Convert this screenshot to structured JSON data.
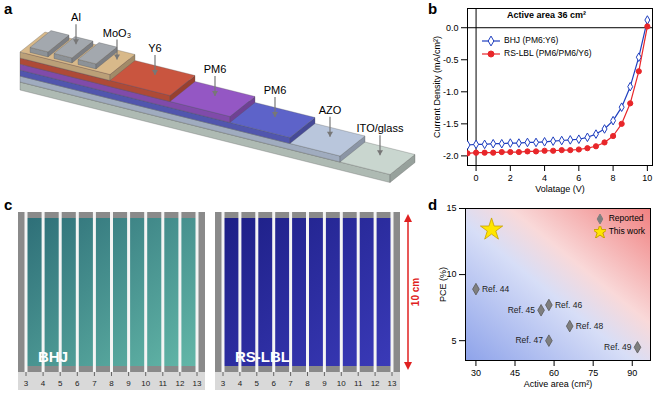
{
  "diagram": {
    "letter": "a",
    "layers": [
      "ITO/glass",
      "AZO",
      "PM6",
      "PM6",
      "Y6",
      "MoO₃",
      "Al"
    ]
  },
  "photos": {
    "letter": "c",
    "labels": [
      "BHJ",
      "RS-LBL"
    ],
    "ruler": [
      3,
      4,
      5,
      6,
      7,
      8,
      9,
      10,
      11,
      12,
      13
    ],
    "scale_bar": "10 cm"
  },
  "chart_data": [
    {
      "panel": "b",
      "type": "line",
      "annotation": "Active area 36 cm²",
      "x_label": "Volatage (V)",
      "y_label": "Current Density (mA/cm²)",
      "xlim": [
        -0.5,
        10.3
      ],
      "xticks": [
        0,
        2,
        4,
        6,
        8,
        10
      ],
      "ylim": [
        -2.15,
        0.3
      ],
      "yticks": [
        {
          "value": -2,
          "label": "-2.0"
        },
        {
          "value": -1.5,
          "label": "-1.5"
        },
        {
          "value": -1,
          "label": "-1.0"
        },
        {
          "value": -0.5,
          "label": "-0.5"
        },
        {
          "value": 0,
          "label": "0.0"
        }
      ],
      "legend": "top",
      "x": [
        -0.5,
        0,
        0.5,
        1,
        1.5,
        2,
        2.5,
        3,
        3.5,
        4,
        4.5,
        5,
        5.5,
        6,
        6.5,
        7,
        7.5,
        8,
        8.5,
        9,
        9.5,
        10
      ],
      "series": [
        {
          "name": "BHJ (PM6:Y6)",
          "color": "#1f3fbf",
          "marker": "diamond",
          "values": [
            -1.83,
            -1.82,
            -1.82,
            -1.81,
            -1.81,
            -1.8,
            -1.8,
            -1.79,
            -1.79,
            -1.78,
            -1.77,
            -1.76,
            -1.75,
            -1.74,
            -1.71,
            -1.66,
            -1.58,
            -1.45,
            -1.24,
            -0.92,
            -0.46,
            0.12
          ]
        },
        {
          "name": "RS-LBL (PM6/PM6/Y6)",
          "color": "#e8262a",
          "marker": "circle",
          "values": [
            -1.96,
            -1.95,
            -1.95,
            -1.95,
            -1.94,
            -1.94,
            -1.94,
            -1.93,
            -1.93,
            -1.92,
            -1.92,
            -1.91,
            -1.91,
            -1.9,
            -1.88,
            -1.85,
            -1.79,
            -1.69,
            -1.5,
            -1.18,
            -0.68,
            0.02
          ]
        }
      ]
    },
    {
      "panel": "d",
      "type": "scatter",
      "x_label": "Active area (cm²)",
      "y_label": "PCE (%)",
      "xlim": [
        26,
        97
      ],
      "xticks": [
        30,
        45,
        60,
        75,
        90
      ],
      "ylim": [
        3.5,
        15
      ],
      "yticks": [
        5,
        10,
        15
      ],
      "legend": "top-right",
      "series": [
        {
          "name": "Reported",
          "color": "#7f7f7f",
          "marker": "diamond",
          "x": [
            30,
            55,
            58,
            58,
            66,
            92
          ],
          "values": [
            8.9,
            7.3,
            7.7,
            5.0,
            6.1,
            4.5
          ],
          "labels": [
            "Ref. 44",
            "Ref. 45",
            "Ref. 46",
            "Ref. 47",
            "Ref. 48",
            "Ref. 49"
          ]
        },
        {
          "name": "This work",
          "color": "#ffe600",
          "marker": "star",
          "x": [
            36
          ],
          "values": [
            13.4
          ]
        }
      ]
    }
  ]
}
